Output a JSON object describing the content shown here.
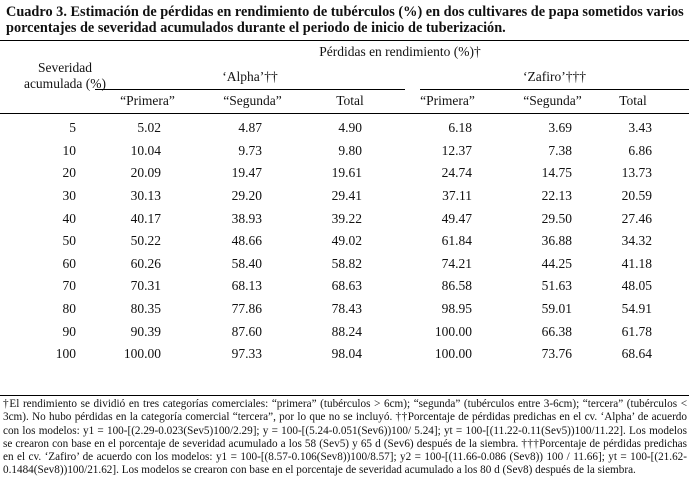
{
  "title": "Cuadro 3. Estimación de pérdidas en rendimiento de tubérculos (%) en dos cultivares de papa  sometidos varios porcentajes de severidad acumulados durante el periodo de inicio de tuberización.",
  "header": {
    "group": "Pérdidas en rendimiento (%)†",
    "severity_line1": "Severidad",
    "severity_line2": "acumulada (%)",
    "alpha": "‘Alpha’††",
    "zafiro": "‘Zafiro’†††",
    "cols": [
      "“Primera”",
      "“Segunda”",
      "Total",
      "“Primera”",
      "“Segunda”",
      "Total"
    ]
  },
  "rows": [
    [
      "5",
      "5.02",
      "4.87",
      "4.90",
      "6.18",
      "3.69",
      "3.43"
    ],
    [
      "10",
      "10.04",
      "9.73",
      "9.80",
      "12.37",
      "7.38",
      "6.86"
    ],
    [
      "20",
      "20.09",
      "19.47",
      "19.61",
      "24.74",
      "14.75",
      "13.73"
    ],
    [
      "30",
      "30.13",
      "29.20",
      "29.41",
      "37.11",
      "22.13",
      "20.59"
    ],
    [
      "40",
      "40.17",
      "38.93",
      "39.22",
      "49.47",
      "29.50",
      "27.46"
    ],
    [
      "50",
      "50.22",
      "48.66",
      "49.02",
      "61.84",
      "36.88",
      "34.32"
    ],
    [
      "60",
      "60.26",
      "58.40",
      "58.82",
      "74.21",
      "44.25",
      "41.18"
    ],
    [
      "70",
      "70.31",
      "68.13",
      "68.63",
      "86.58",
      "51.63",
      "48.05"
    ],
    [
      "80",
      "80.35",
      "77.86",
      "78.43",
      "98.95",
      "59.01",
      "54.91"
    ],
    [
      "90",
      "90.39",
      "87.60",
      "88.24",
      "100.00",
      "66.38",
      "61.78"
    ],
    [
      "100",
      "100.00",
      "97.33",
      "98.04",
      "100.00",
      "73.76",
      "68.64"
    ]
  ],
  "footnote": "†El rendimiento se dividió en tres categorías comerciales: “primera” (tubérculos > 6cm); “segunda” (tubérculos entre 3-6cm); “tercera” (tubérculos < 3cm). No hubo pérdidas en la categoría comercial “tercera”, por lo que no se incluyó. ††Porcentaje de pérdidas predichas en el cv. ‘Alpha’ de acuerdo con los modelos: y1 = 100-[(2.29-0.023(Sev5)100/2.29]; y = 100-[(5.24-0.051(Sev6))100/ 5.24]; yt = 100-[(11.22-0.11(Sev5))100/11.22]. Los modelos se crearon con base en el porcentaje de severidad acumulado a los 58 (Sev5) y 65 d (Sev6) después de la siembra.  †††Porcentaje de pérdidas predichas en el cv. ‘Zafiro’ de acuerdo con los modelos: y1 = 100-[(8.57-0.106(Sev8))100/8.57]; y2 = 100-[(11.66-0.086 (Sev8)) 100 / 11.66]; yt = 100-[(21.62-0.1484(Sev8))100/21.62]. Los modelos se crearon con base en el porcentaje de severidad acumulado a los 80 d (Sev8) después de la siembra."
}
